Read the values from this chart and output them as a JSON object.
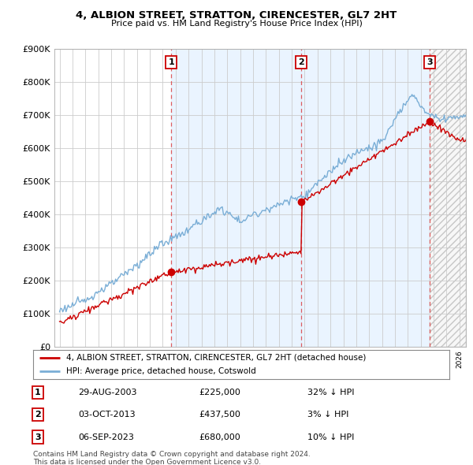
{
  "title": "4, ALBION STREET, STRATTON, CIRENCESTER, GL7 2HT",
  "subtitle": "Price paid vs. HM Land Registry's House Price Index (HPI)",
  "ylim": [
    0,
    900000
  ],
  "yticks": [
    0,
    100000,
    200000,
    300000,
    400000,
    500000,
    600000,
    700000,
    800000,
    900000
  ],
  "sale_date_floats": [
    2003.66,
    2013.75,
    2023.68
  ],
  "sale_prices": [
    225000,
    437500,
    680000
  ],
  "sale_labels": [
    "1",
    "2",
    "3"
  ],
  "legend_red": "4, ALBION STREET, STRATTON, CIRENCESTER, GL7 2HT (detached house)",
  "legend_blue": "HPI: Average price, detached house, Cotswold",
  "table_data": [
    [
      "1",
      "29-AUG-2003",
      "£225,000",
      "32% ↓ HPI"
    ],
    [
      "2",
      "03-OCT-2013",
      "£437,500",
      "3% ↓ HPI"
    ],
    [
      "3",
      "06-SEP-2023",
      "£680,000",
      "10% ↓ HPI"
    ]
  ],
  "footnote": "Contains HM Land Registry data © Crown copyright and database right 2024.\nThis data is licensed under the Open Government Licence v3.0.",
  "red_color": "#cc0000",
  "blue_color": "#7aaed6",
  "blue_fill_color": "#ddeeff",
  "vline_color": "#dd4444",
  "grid_color": "#cccccc",
  "background_color": "#ffffff",
  "xlim_left": 1994.6,
  "xlim_right": 2026.5,
  "start_year": 1995.0,
  "end_year": 2026.5
}
